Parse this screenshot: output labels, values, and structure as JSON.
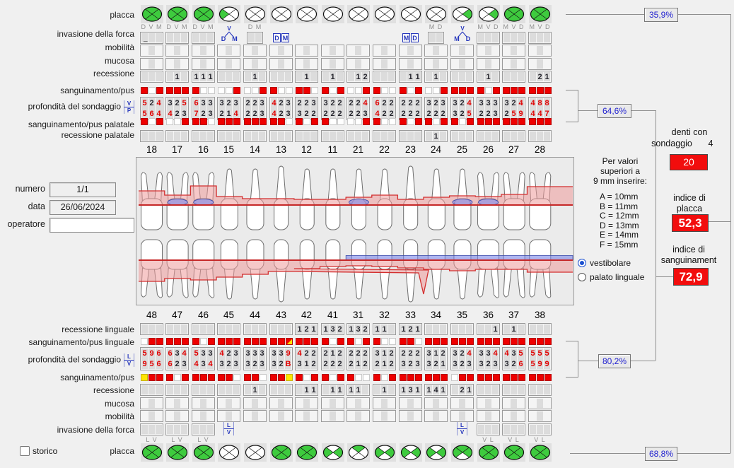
{
  "left_panel": {
    "numero_label": "numero",
    "numero_value": "1/1",
    "data_label": "data",
    "data_value": "26/06/2024",
    "operatore_label": "operatore",
    "operatore_value": ""
  },
  "storico_label": "storico",
  "row_labels_top": [
    "placca",
    "invasione della forca",
    "mobilità",
    "mucosa",
    "recessione",
    "sanguinamento/pus",
    "profondità del sondaggio",
    "sanguinamento/pus palatale",
    "recessione palatale"
  ],
  "row_labels_bottom": [
    "recessione linguale",
    "sanguinamento/pus linguale",
    "profondità del sondaggio",
    "sanguinamento/pus",
    "recessione",
    "mucosa",
    "mobilità",
    "invasione della forca",
    "placca"
  ],
  "probe_icon_top": {
    "top": "V",
    "bottom": "P"
  },
  "probe_icon_bottom": {
    "top": "L",
    "bottom": "V"
  },
  "percent_boxes": {
    "top_placca": "35,9%",
    "top_sondaggio": "64,6%",
    "bottom_sondaggio": "80,2%",
    "bottom_placca": "68,8%"
  },
  "right_panel": {
    "denti_line1": "denti con",
    "denti_line2": "sondaggio",
    "denti_value": "4",
    "denti_box": "20",
    "indice_placca_l1": "indice di",
    "indice_placca_l2": "placca",
    "indice_placca_value": "52,3",
    "indice_sang_l1": "indice di",
    "indice_sang_l2": "sanguinament",
    "indice_sang_value": "72,9",
    "legend_title": [
      "Per valori",
      "superiori a",
      "9 mm inserire:"
    ],
    "legend_items": [
      "A = 10mm",
      "B = 11mm",
      "C = 12mm",
      "D = 13mm",
      "E = 14mm",
      "F = 15mm"
    ],
    "radio_vestibolare": "vestibolare",
    "radio_palato": "palato linguale",
    "radio_selected": "vestibolare"
  },
  "teeth_top": [
    {
      "num": "18",
      "placca": "GGGG",
      "forca_label": "D V M",
      "forca_cells": 3,
      "forca_glyph": "",
      "cursor": true,
      "rec": "   ",
      "bleed_v": "RWR",
      "p1": "524",
      "p2": "564",
      "bleed_p": "RWR",
      "rec_p": "   "
    },
    {
      "num": "17",
      "placca": "GGGG",
      "forca_label": "D V M",
      "forca_cells": 3,
      "forca_glyph": "",
      "rec": " 1 ",
      "bleed_v": "RRR",
      "p1": "325",
      "p2": "423",
      "bleed_p": "WWR",
      "rec_p": "   "
    },
    {
      "num": "16",
      "placca": "GGGG",
      "forca_label": "D V M",
      "forca_cells": 3,
      "forca_glyph": "",
      "rec": "111",
      "bleed_v": "RWW",
      "p1": "633",
      "p2": "723",
      "bleed_p": "RRW",
      "rec_p": "   "
    },
    {
      "num": "15",
      "placca": "WWWG",
      "forca_label": "",
      "forca_cells": 0,
      "forca_glyph": "tri",
      "g_top": "V",
      "g_left": "D",
      "g_right": "M",
      "rec": "   ",
      "bleed_v": "WWR",
      "p1": "323",
      "p2": "214",
      "bleed_p": "RRR",
      "rec_p": "   "
    },
    {
      "num": "14",
      "placca": "WWWW",
      "forca_label": "D M",
      "forca_cells": 2,
      "forca_glyph": "",
      "rec": " 1 ",
      "bleed_v": "WWR",
      "p1": "223",
      "p2": "223",
      "bleed_p": "RRR",
      "rec_p": "   "
    },
    {
      "num": "13",
      "placca": "WWWW",
      "forca_label": "",
      "forca_cells": 0,
      "forca_glyph": "pair",
      "g_left": "D",
      "g_right": "M",
      "rec": "   ",
      "bleed_v": "RWW",
      "p1": "423",
      "p2": "423",
      "bleed_p": "RRW",
      "rec_p": "   "
    },
    {
      "num": "12",
      "placca": "WWWW",
      "forca_label": "",
      "forca_cells": 0,
      "forca_glyph": "",
      "rec": " 1 ",
      "bleed_v": "RRW",
      "p1": "223",
      "p2": "322",
      "bleed_p": "RWR",
      "rec_p": "   "
    },
    {
      "num": "11",
      "placca": "WWWW",
      "forca_label": "",
      "forca_cells": 0,
      "forca_glyph": "",
      "rec": " 1 ",
      "bleed_v": "RWR",
      "p1": "322",
      "p2": "222",
      "bleed_p": "RWW",
      "rec_p": "   "
    },
    {
      "num": "21",
      "placca": "WWWW",
      "forca_label": "",
      "forca_cells": 0,
      "forca_glyph": "",
      "rec": " 12",
      "bleed_v": "WWR",
      "p1": "224",
      "p2": "223",
      "bleed_p": "WWR",
      "rec_p": "   "
    },
    {
      "num": "22",
      "placca": "WWWW",
      "forca_label": "",
      "forca_cells": 0,
      "forca_glyph": "",
      "rec": "   ",
      "bleed_v": "RWW",
      "p1": "622",
      "p2": "422",
      "bleed_p": "RWW",
      "rec_p": "   "
    },
    {
      "num": "23",
      "placca": "WWWW",
      "forca_label": "",
      "forca_cells": 0,
      "forca_glyph": "pair",
      "g_left": "M",
      "g_right": "D",
      "rec": " 11",
      "bleed_v": "RWR",
      "p1": "222",
      "p2": "222",
      "bleed_p": "RWR",
      "rec_p": "   "
    },
    {
      "num": "24",
      "placca": "WWWW",
      "forca_label": "M D",
      "forca_cells": 2,
      "forca_glyph": "",
      "rec": " 1 ",
      "bleed_v": "WWR",
      "p1": "323",
      "p2": "222",
      "bleed_p": "RWR",
      "rec_p": " 1 "
    },
    {
      "num": "25",
      "placca": "WGWW",
      "forca_label": "",
      "forca_cells": 0,
      "forca_glyph": "tri",
      "g_top": "V",
      "g_left": "M",
      "g_right": "D",
      "rec": "   ",
      "bleed_v": "RRR",
      "p1": "324",
      "p2": "325",
      "bleed_p": "RWR",
      "rec_p": "   "
    },
    {
      "num": "26",
      "placca": "WGWW",
      "forca_label": "M V D",
      "forca_cells": 3,
      "forca_glyph": "",
      "rec": " 1 ",
      "bleed_v": "RWR",
      "p1": "333",
      "p2": "223",
      "bleed_p": "RRR",
      "rec_p": "   "
    },
    {
      "num": "27",
      "placca": "GGGG",
      "forca_label": "M V D",
      "forca_cells": 3,
      "forca_glyph": "",
      "rec": "   ",
      "bleed_v": "RRR",
      "p1": "324",
      "p2": "259",
      "bleed_p": "RRR",
      "rec_p": "   "
    },
    {
      "num": "28",
      "placca": "GGGG",
      "forca_label": "M V D",
      "forca_cells": 3,
      "forca_glyph": "",
      "rec": " 21",
      "bleed_v": "RRR",
      "p1": "488",
      "p2": "447",
      "bleed_p": "RRR",
      "rec_p": "   "
    }
  ],
  "teeth_bottom": [
    {
      "num": "48",
      "placca": "GGGG",
      "forca_label": "L V",
      "forca_cells": 3,
      "forca_glyph": "",
      "rec_l": "   ",
      "bleed_l": "WRR",
      "p1": "596",
      "p2": "956",
      "bleed_v": "YRR",
      "rec": "   "
    },
    {
      "num": "47",
      "placca": "GGGG",
      "forca_label": "L V",
      "forca_cells": 3,
      "forca_glyph": "",
      "rec_l": "   ",
      "bleed_l": "RRR",
      "p1": "634",
      "p2": "623",
      "bleed_v": "RWR",
      "rec": "   "
    },
    {
      "num": "46",
      "placca": "GGGG",
      "forca_label": "L V",
      "forca_cells": 3,
      "forca_glyph": "",
      "rec_l": "   ",
      "bleed_l": "RWR",
      "p1": "533",
      "p2": "434",
      "bleed_v": "RRR",
      "rec": "   "
    },
    {
      "num": "45",
      "placca": "WWWW",
      "forca_label": "",
      "forca_cells": 0,
      "forca_glyph": "stack",
      "g_top": "L",
      "g_bottom": "V",
      "rec_l": "   ",
      "bleed_l": "RRR",
      "p1": "423",
      "p2": "323",
      "bleed_v": "RRW",
      "rec": "   "
    },
    {
      "num": "44",
      "placca": "WWWW",
      "forca_label": "",
      "forca_cells": 0,
      "forca_glyph": "",
      "rec_l": "   ",
      "bleed_l": "RRR",
      "p1": "333",
      "p2": "323",
      "bleed_v": "RRW",
      "rec": " 1 "
    },
    {
      "num": "43",
      "placca": "GGGG",
      "forca_label": "",
      "forca_cells": 0,
      "forca_glyph": "",
      "rec_l": "   ",
      "bleed_l": "RRD",
      "p1": "339",
      "p2": "32B",
      "bleed_v": "RRY",
      "rec": "   "
    },
    {
      "num": "42",
      "placca": "GGGG",
      "forca_label": "",
      "forca_cells": 0,
      "forca_glyph": "",
      "rec_l": "121",
      "bleed_l": "RRR",
      "p1": "422",
      "p2": "312",
      "bleed_v": "RWR",
      "rec": " 11"
    },
    {
      "num": "41",
      "placca": "WGWG",
      "forca_label": "",
      "forca_cells": 0,
      "forca_glyph": "",
      "rec_l": "132",
      "bleed_l": "RWR",
      "p1": "212",
      "p2": "222",
      "bleed_v": "RWR",
      "rec": " 11"
    },
    {
      "num": "31",
      "placca": "GWWW",
      "forca_label": "",
      "forca_cells": 0,
      "forca_glyph": "",
      "rec_l": "132",
      "bleed_l": "RWR",
      "p1": "222",
      "p2": "212",
      "bleed_v": "RWW",
      "rec": "11 "
    },
    {
      "num": "32",
      "placca": "WGWG",
      "forca_label": "",
      "forca_cells": 0,
      "forca_glyph": "",
      "rec_l": "11 ",
      "bleed_l": "RWW",
      "p1": "312",
      "p2": "212",
      "bleed_v": "RWR",
      "rec": " 1 "
    },
    {
      "num": "33",
      "placca": "WGWG",
      "forca_label": "",
      "forca_cells": 0,
      "forca_glyph": "",
      "rec_l": "121",
      "bleed_l": "RRW",
      "p1": "222",
      "p2": "323",
      "bleed_v": "RRR",
      "rec": "131"
    },
    {
      "num": "34",
      "placca": "WGWG",
      "forca_label": "",
      "forca_cells": 0,
      "forca_glyph": "",
      "rec_l": "   ",
      "bleed_l": "RRR",
      "p1": "312",
      "p2": "321",
      "bleed_v": "RRR",
      "rec": "141"
    },
    {
      "num": "35",
      "placca": "GGWG",
      "forca_label": "",
      "forca_cells": 0,
      "forca_glyph": "stack",
      "g_top": "L",
      "g_bottom": "V",
      "rec_l": "   ",
      "bleed_l": "RRR",
      "p1": "324",
      "p2": "323",
      "bleed_v": "WRR",
      "rec": " 21"
    },
    {
      "num": "36",
      "placca": "GGGG",
      "forca_label": "V L",
      "forca_cells": 3,
      "forca_glyph": "",
      "rec_l": "  1",
      "bleed_l": "RRR",
      "p1": "334",
      "p2": "323",
      "bleed_v": "RRR",
      "rec": "   "
    },
    {
      "num": "37",
      "placca": "GGGG",
      "forca_label": "V L",
      "forca_cells": 3,
      "forca_glyph": "",
      "rec_l": " 1 ",
      "bleed_l": "RRR",
      "p1": "435",
      "p2": "326",
      "bleed_v": "RRR",
      "rec": "   "
    },
    {
      "num": "38",
      "placca": "GGGG",
      "forca_label": "V L",
      "forca_cells": 3,
      "forca_glyph": "",
      "rec_l": "   ",
      "bleed_l": "RRR",
      "p1": "555",
      "p2": "599",
      "bleed_v": "RRR",
      "rec": "   "
    }
  ],
  "chart": {
    "upper_pocket": [
      20,
      14,
      27,
      12,
      9,
      9,
      8,
      8,
      11,
      14,
      8,
      11,
      13,
      12,
      15,
      26
    ],
    "lower_pocket": [
      30,
      26,
      28,
      24,
      20,
      16,
      12,
      9,
      8,
      9,
      11,
      13,
      15,
      13,
      13,
      17
    ],
    "upper_blue_teeth": [
      1,
      2,
      8,
      12,
      13
    ],
    "lower_blue_from": 8,
    "spike_apex": 193
  },
  "colors": {
    "green": "#3ecb3e",
    "red": "#ee0000",
    "yellow": "#ffe400",
    "red_text": "#e00000",
    "blue_glyph": "#2233bb"
  }
}
